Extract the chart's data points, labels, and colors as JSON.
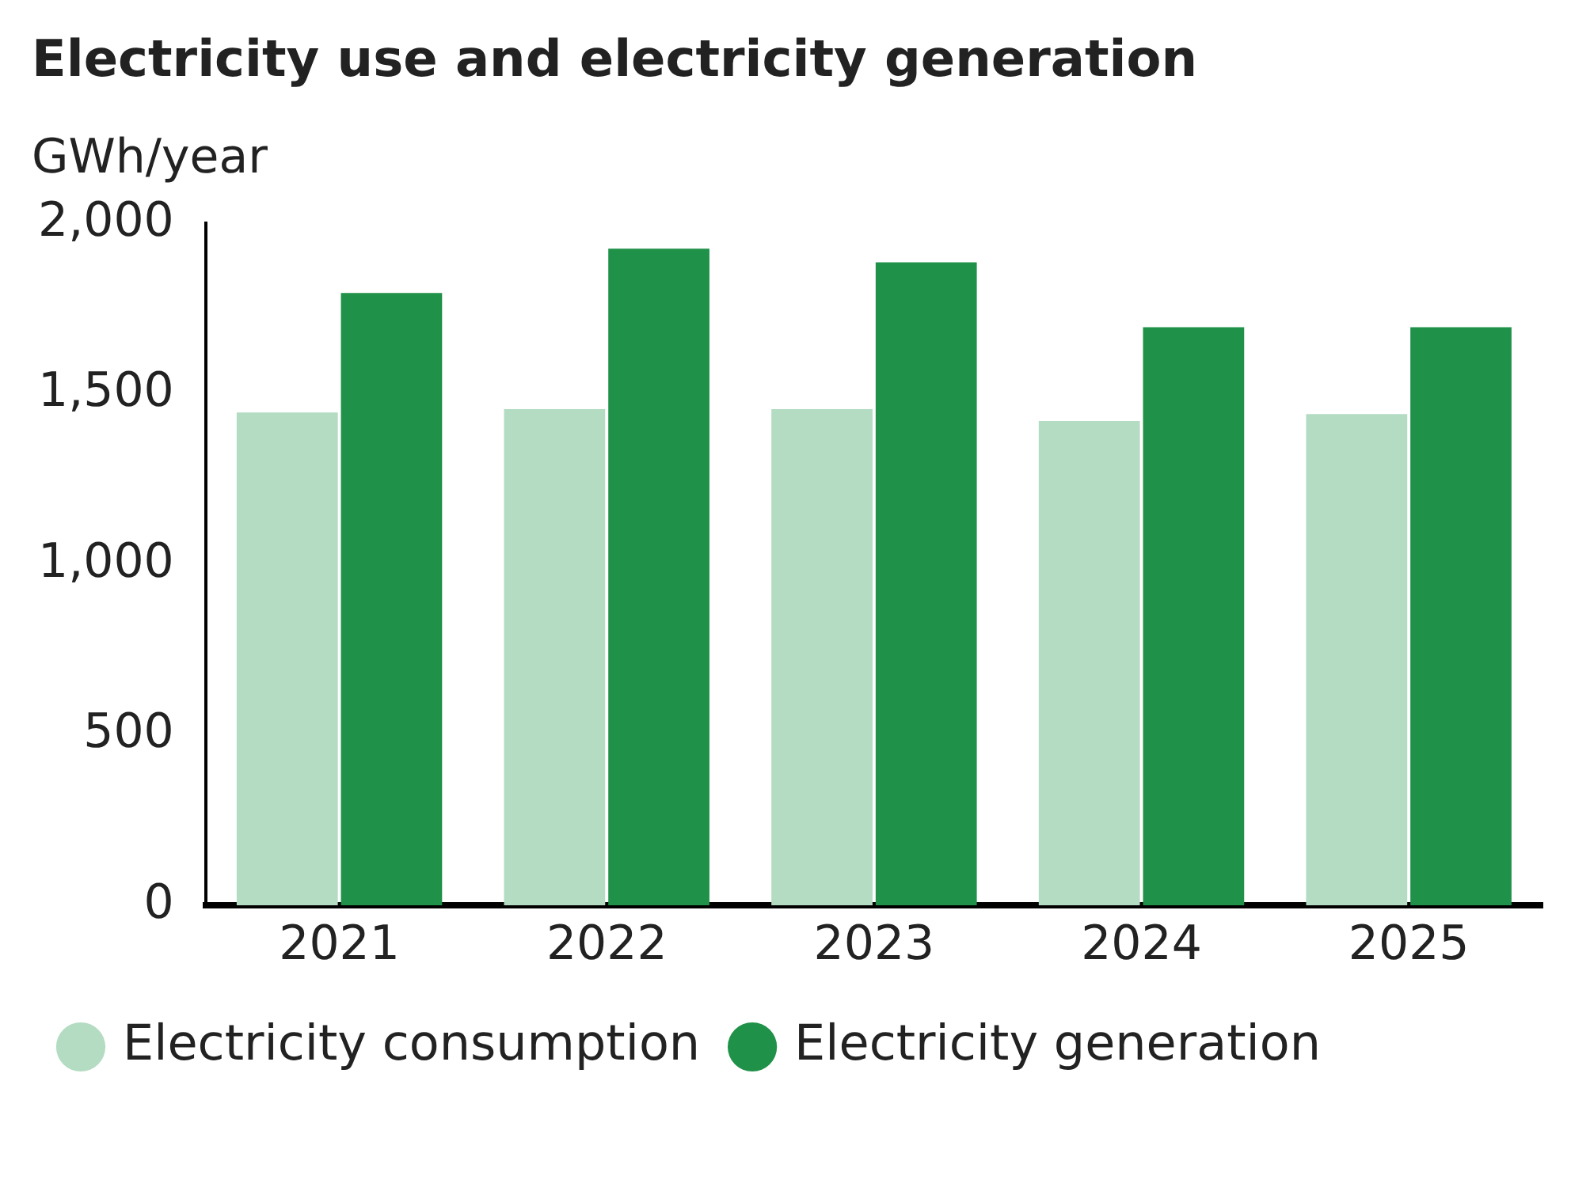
{
  "chart_data": {
    "type": "bar",
    "title": "Electricity use and electricity generation",
    "ylabel": "GWh/year",
    "categories": [
      "2021",
      "2022",
      "2023",
      "2024",
      "2025"
    ],
    "series": [
      {
        "name": "Electricity consumption",
        "color": "#b3dcc2",
        "values": [
          1445,
          1455,
          1455,
          1420,
          1440
        ]
      },
      {
        "name": "Electricity generation",
        "color": "#1f9148",
        "values": [
          1795,
          1925,
          1885,
          1695,
          1695
        ]
      }
    ],
    "ylim": [
      0,
      2000
    ],
    "yticks": [
      0,
      500,
      {
        "value": 1000,
        "label": "1,000"
      },
      {
        "value": 1500,
        "label": "1,500"
      },
      {
        "value": 2000,
        "label": "2,000"
      }
    ],
    "grid": false,
    "legend": "bottom"
  }
}
